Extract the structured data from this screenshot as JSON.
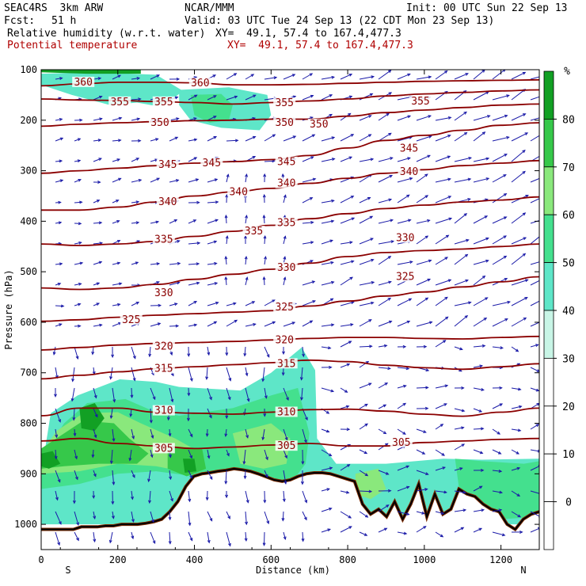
{
  "header": {
    "model": "SEAC4RS  3km ARW",
    "org": "NCAR/MMM",
    "init": "Init: 00 UTC Sun 22 Sep 13",
    "fcst_label": "Fcst:",
    "fcst_value": "51 h",
    "valid": "Valid: 03 UTC Tue 24 Sep 13 (22 CDT Mon 23 Sep 13)",
    "field1": "Relative humidity (w.r.t. water)",
    "xy1": "XY=  49.1, 57.4 to 167.4,477.3",
    "field2": "Potential temperature",
    "xy2": "XY=  49.1, 57.4 to 167.4,477.3"
  },
  "chart_data": {
    "type": "cross-section",
    "xlabel": "Distance (km)",
    "ylabel": "Pressure (hPa)",
    "xlim": [
      0,
      1300
    ],
    "ylim": [
      1050,
      100
    ],
    "x_ticks": [
      0,
      200,
      400,
      600,
      800,
      1000,
      1200
    ],
    "y_ticks": [
      100,
      200,
      300,
      400,
      500,
      600,
      700,
      800,
      900,
      1000
    ],
    "x_end_labels": {
      "left": "S",
      "right": "N"
    },
    "colorbar": {
      "unit": "%",
      "levels": [
        0,
        10,
        20,
        30,
        40,
        50,
        60,
        70,
        80
      ],
      "tick_labels": [
        "0",
        "10",
        "20",
        "30",
        "40",
        "50",
        "60",
        "70",
        "80"
      ],
      "colors": [
        "#ffffff",
        "#ffffff",
        "#ffffff",
        "#ffffff",
        "#c8f5e6",
        "#5ee6c8",
        "#44e08e",
        "#8ae87c",
        "#36c84a",
        "#12a024"
      ]
    },
    "isentropes": [
      {
        "theta": 305,
        "p": [
          835,
          830,
          840,
          845,
          850,
          847,
          843,
          840,
          845,
          845,
          838,
          835,
          832,
          830
        ]
      },
      {
        "theta": 310,
        "p": [
          785,
          770,
          770,
          778,
          780,
          782,
          778,
          773,
          772,
          776,
          782,
          786,
          778,
          770
        ]
      },
      {
        "theta": 315,
        "p": [
          712,
          705,
          698,
          692,
          688,
          684,
          680,
          675,
          678,
          685,
          690,
          693,
          688,
          682
        ]
      },
      {
        "theta": 320,
        "p": [
          655,
          650,
          645,
          642,
          640,
          638,
          635,
          632,
          630,
          630,
          632,
          633,
          630,
          628
        ]
      },
      {
        "theta": 325,
        "p": [
          598,
          595,
          590,
          586,
          583,
          580,
          577,
          568,
          558,
          548,
          540,
          530,
          520,
          510
        ]
      },
      {
        "theta": 330,
        "p": [
          532,
          535,
          532,
          525,
          515,
          505,
          495,
          483,
          470,
          462,
          458,
          455,
          450,
          445
        ]
      },
      {
        "theta": 335,
        "p": [
          445,
          448,
          445,
          440,
          430,
          420,
          408,
          395,
          385,
          375,
          368,
          362,
          358,
          352
        ]
      },
      {
        "theta": 340,
        "p": [
          378,
          378,
          372,
          362,
          350,
          342,
          335,
          325,
          315,
          305,
          298,
          290,
          285,
          280
        ]
      },
      {
        "theta": 345,
        "p": [
          305,
          300,
          295,
          290,
          285,
          282,
          278,
          270,
          255,
          240,
          230,
          220,
          210,
          205
        ]
      },
      {
        "theta": 350,
        "p": [
          212,
          208,
          205,
          203,
          201,
          200,
          198,
          198,
          192,
          185,
          180,
          175,
          170,
          168
        ]
      },
      {
        "theta": 355,
        "p": [
          158,
          160,
          161,
          163,
          165,
          168,
          165,
          162,
          158,
          152,
          148,
          145,
          142,
          140
        ]
      },
      {
        "theta": 360,
        "p": [
          132,
          128,
          125,
          125,
          126,
          130,
          130,
          129,
          127,
          125,
          123,
          122,
          121,
          120
        ]
      }
    ],
    "contour_labels": [
      {
        "text": "360",
        "x": 110,
        "p": 125
      },
      {
        "text": "360",
        "x": 415,
        "p": 127
      },
      {
        "text": "355",
        "x": 205,
        "p": 164
      },
      {
        "text": "355",
        "x": 320,
        "p": 164
      },
      {
        "text": "355",
        "x": 635,
        "p": 166
      },
      {
        "text": "355",
        "x": 990,
        "p": 163
      },
      {
        "text": "350",
        "x": 310,
        "p": 205
      },
      {
        "text": "350",
        "x": 635,
        "p": 205
      },
      {
        "text": "350",
        "x": 725,
        "p": 208
      },
      {
        "text": "345",
        "x": 960,
        "p": 256
      },
      {
        "text": "345",
        "x": 330,
        "p": 288
      },
      {
        "text": "345",
        "x": 445,
        "p": 285
      },
      {
        "text": "345",
        "x": 640,
        "p": 283
      },
      {
        "text": "340",
        "x": 960,
        "p": 302
      },
      {
        "text": "340",
        "x": 640,
        "p": 325
      },
      {
        "text": "340",
        "x": 515,
        "p": 342
      },
      {
        "text": "340",
        "x": 330,
        "p": 362
      },
      {
        "text": "335",
        "x": 640,
        "p": 403
      },
      {
        "text": "335",
        "x": 555,
        "p": 420
      },
      {
        "text": "335",
        "x": 320,
        "p": 436
      },
      {
        "text": "330",
        "x": 950,
        "p": 433
      },
      {
        "text": "330",
        "x": 640,
        "p": 492
      },
      {
        "text": "330",
        "x": 320,
        "p": 542
      },
      {
        "text": "325",
        "x": 950,
        "p": 510
      },
      {
        "text": "325",
        "x": 635,
        "p": 570
      },
      {
        "text": "325",
        "x": 235,
        "p": 595
      },
      {
        "text": "320",
        "x": 635,
        "p": 635
      },
      {
        "text": "320",
        "x": 320,
        "p": 648
      },
      {
        "text": "315",
        "x": 640,
        "p": 682
      },
      {
        "text": "315",
        "x": 320,
        "p": 692
      },
      {
        "text": "310",
        "x": 320,
        "p": 775
      },
      {
        "text": "310",
        "x": 640,
        "p": 778
      },
      {
        "text": "305",
        "x": 640,
        "p": 845
      },
      {
        "text": "305",
        "x": 320,
        "p": 850
      },
      {
        "text": "305",
        "x": 940,
        "p": 838
      }
    ],
    "terrain_p": [
      1010,
      1010,
      1010,
      1010,
      1010,
      1005,
      1005,
      1005,
      1003,
      1003,
      1000,
      1000,
      1000,
      998,
      995,
      990,
      975,
      955,
      925,
      905,
      900,
      898,
      895,
      893,
      890,
      892,
      895,
      900,
      906,
      912,
      915,
      912,
      905,
      900,
      898,
      898,
      900,
      905,
      910,
      915,
      960,
      980,
      970,
      985,
      955,
      990,
      960,
      920,
      985,
      940,
      980,
      970,
      930,
      940,
      945,
      960,
      970,
      975,
      1000,
      1010,
      990,
      980,
      975
    ],
    "humid_regions": [
      {
        "level": 40,
        "points": [
          [
            0,
            900
          ],
          [
            25,
            780
          ],
          [
            95,
            745
          ],
          [
            205,
            713
          ],
          [
            300,
            718
          ],
          [
            360,
            728
          ],
          [
            520,
            735
          ],
          [
            600,
            700
          ],
          [
            680,
            650
          ],
          [
            715,
            695
          ],
          [
            720,
            830
          ],
          [
            770,
            880
          ],
          [
            900,
            880
          ],
          [
            1050,
            870
          ],
          [
            1150,
            872
          ],
          [
            1300,
            870
          ],
          [
            1300,
            1000
          ],
          [
            0,
            1000
          ]
        ]
      },
      {
        "level": 40,
        "points": [
          [
            0,
            108
          ],
          [
            130,
            105
          ],
          [
            300,
            110
          ],
          [
            370,
            142
          ],
          [
            340,
            160
          ],
          [
            300,
            172
          ],
          [
            250,
            165
          ],
          [
            180,
            170
          ],
          [
            80,
            150
          ],
          [
            0,
            130
          ]
        ]
      },
      {
        "level": 40,
        "points": [
          [
            360,
            140
          ],
          [
            490,
            135
          ],
          [
            590,
            150
          ],
          [
            600,
            190
          ],
          [
            570,
            220
          ],
          [
            470,
            215
          ],
          [
            390,
            200
          ],
          [
            360,
            170
          ]
        ]
      },
      {
        "level": 50,
        "points": [
          [
            0,
            870
          ],
          [
            60,
            800
          ],
          [
            120,
            760
          ],
          [
            220,
            752
          ],
          [
            290,
            775
          ],
          [
            360,
            785
          ],
          [
            500,
            770
          ],
          [
            600,
            745
          ],
          [
            670,
            730
          ],
          [
            700,
            820
          ],
          [
            690,
            880
          ],
          [
            650,
            920
          ],
          [
            560,
            920
          ],
          [
            480,
            900
          ],
          [
            400,
            905
          ],
          [
            300,
            895
          ],
          [
            200,
            900
          ],
          [
            100,
            920
          ],
          [
            0,
            930
          ]
        ]
      },
      {
        "level": 50,
        "points": [
          [
            390,
            150
          ],
          [
            470,
            148
          ],
          [
            500,
            170
          ],
          [
            490,
            200
          ],
          [
            440,
            205
          ],
          [
            400,
            190
          ]
        ]
      },
      {
        "level": 50,
        "points": [
          [
            1080,
            870
          ],
          [
            1150,
            875
          ],
          [
            1260,
            880
          ],
          [
            1300,
            875
          ],
          [
            1300,
            985
          ],
          [
            1200,
            990
          ],
          [
            1100,
            980
          ]
        ]
      },
      {
        "level": 60,
        "points": [
          [
            0,
            860
          ],
          [
            40,
            815
          ],
          [
            110,
            780
          ],
          [
            200,
            778
          ],
          [
            260,
            800
          ],
          [
            350,
            830
          ],
          [
            420,
            860
          ],
          [
            400,
            900
          ],
          [
            300,
            885
          ],
          [
            200,
            880
          ],
          [
            100,
            895
          ],
          [
            0,
            900
          ]
        ]
      },
      {
        "level": 60,
        "points": [
          [
            500,
            820
          ],
          [
            600,
            800
          ],
          [
            650,
            830
          ],
          [
            640,
            880
          ],
          [
            580,
            890
          ],
          [
            520,
            880
          ]
        ]
      },
      {
        "level": 60,
        "points": [
          [
            820,
            900
          ],
          [
            880,
            890
          ],
          [
            900,
            930
          ],
          [
            860,
            950
          ],
          [
            820,
            940
          ]
        ]
      },
      {
        "level": 70,
        "points": [
          [
            0,
            850
          ],
          [
            60,
            820
          ],
          [
            110,
            795
          ],
          [
            190,
            800
          ],
          [
            230,
            830
          ],
          [
            280,
            860
          ],
          [
            250,
            880
          ],
          [
            150,
            880
          ],
          [
            60,
            885
          ],
          [
            0,
            890
          ]
        ]
      },
      {
        "level": 70,
        "points": [
          [
            330,
            845
          ],
          [
            420,
            850
          ],
          [
            430,
            890
          ],
          [
            380,
            905
          ],
          [
            330,
            890
          ]
        ]
      },
      {
        "level": 80,
        "points": [
          [
            100,
            770
          ],
          [
            140,
            760
          ],
          [
            165,
            790
          ],
          [
            140,
            815
          ],
          [
            105,
            810
          ]
        ]
      },
      {
        "level": 80,
        "points": [
          [
            370,
            870
          ],
          [
            400,
            870
          ],
          [
            405,
            895
          ],
          [
            375,
            898
          ]
        ]
      },
      {
        "level": 80,
        "points": [
          [
            0,
            860
          ],
          [
            30,
            855
          ],
          [
            50,
            880
          ],
          [
            20,
            890
          ],
          [
            0,
            885
          ]
        ]
      },
      {
        "level": 80,
        "points": [
          [
            0,
            95
          ],
          [
            120,
            95
          ],
          [
            260,
            100
          ],
          [
            260,
            108
          ],
          [
            120,
            108
          ],
          [
            0,
            105
          ]
        ]
      }
    ]
  }
}
